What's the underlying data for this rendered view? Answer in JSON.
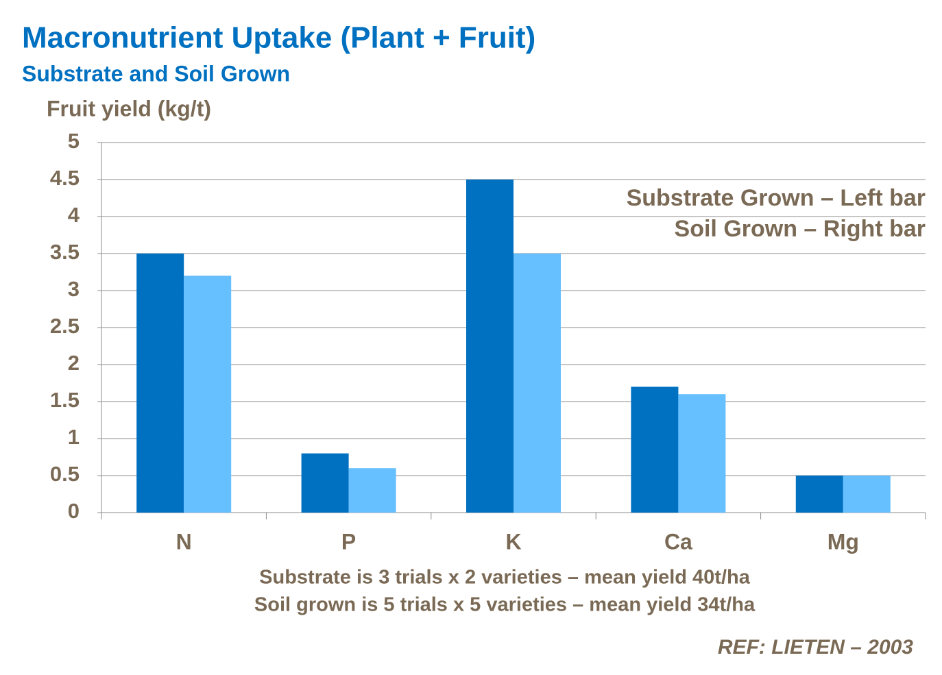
{
  "chart_data": {
    "type": "bar",
    "title": "Macronutrient Uptake (Plant + Fruit)",
    "subtitle": "Substrate and Soil Grown",
    "y_label": "Fruit yield (kg/t)",
    "annotations": [
      "Substrate Grown – Left bar",
      "Soil Grown – Right bar"
    ],
    "notes": [
      "Substrate is 3 trials x 2 varieties – mean yield 40t/ha",
      "Soil grown is 5 trials x 5 varieties – mean yield 34t/ha"
    ],
    "reference": "REF:  LIETEN – 2003",
    "categories": [
      "N",
      "P",
      "K",
      "Ca",
      "Mg"
    ],
    "series": [
      {
        "color": "#0070c0",
        "values": [
          3.5,
          0.8,
          4.5,
          1.7,
          0.5
        ]
      },
      {
        "color": "#66bfff",
        "values": [
          3.2,
          0.6,
          3.5,
          1.6,
          0.5
        ]
      }
    ],
    "ylim": [
      0,
      5
    ],
    "yticks": [
      0,
      0.5,
      1,
      1.5,
      2,
      2.5,
      3,
      3.5,
      4,
      4.5,
      5
    ],
    "grid": true
  }
}
